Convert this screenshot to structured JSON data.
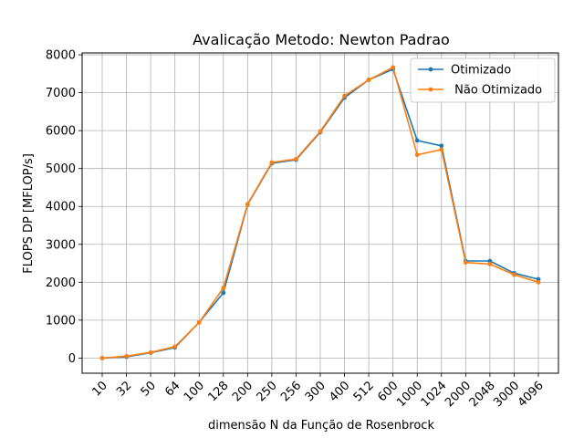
{
  "chart_data": {
    "type": "line",
    "title": "Avalicação Metodo:  Newton Padrao",
    "xlabel": "dimensão N da Função de Rosenbrock",
    "ylabel": "FLOPS DP [MFLOP/s]",
    "categories": [
      "10",
      "32",
      "50",
      "64",
      "100",
      "128",
      "200",
      "250",
      "256",
      "300",
      "400",
      "512",
      "600",
      "1000",
      "1024",
      "2000",
      "2048",
      "3000",
      "4096"
    ],
    "ylim": [
      -400,
      8050
    ],
    "yticks": [
      0,
      1000,
      2000,
      3000,
      4000,
      5000,
      6000,
      7000,
      8000
    ],
    "grid": true,
    "legend_position": "top-right",
    "series": [
      {
        "name": "Otimizado",
        "color": "#1f77b4",
        "values": [
          0,
          30,
          140,
          280,
          940,
          1720,
          4050,
          5140,
          5230,
          5960,
          6870,
          7340,
          7620,
          5740,
          5600,
          2560,
          2560,
          2240,
          2080
        ]
      },
      {
        "name": " Não Otimizado",
        "color": "#ff7f0e",
        "values": [
          0,
          50,
          150,
          300,
          940,
          1850,
          4060,
          5160,
          5250,
          5980,
          6920,
          7340,
          7670,
          5360,
          5500,
          2520,
          2480,
          2200,
          2000
        ]
      }
    ]
  }
}
